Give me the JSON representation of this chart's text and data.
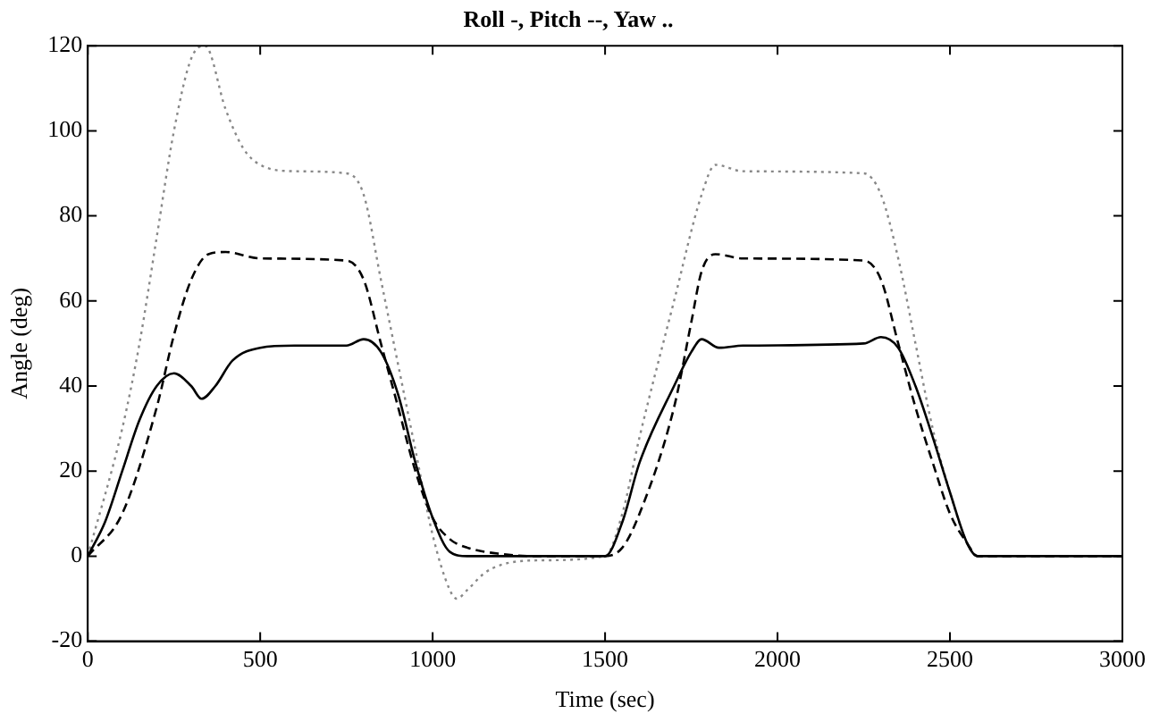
{
  "chart_data": {
    "type": "line",
    "title": "Roll -, Pitch --, Yaw ..",
    "xlabel": "Time (sec)",
    "ylabel": "Angle (deg)",
    "xlim": [
      0,
      3000
    ],
    "xticks": [
      0,
      500,
      1000,
      1500,
      2000,
      2500,
      3000
    ],
    "ylim": [
      -20,
      120
    ],
    "yticks": [
      -20,
      0,
      20,
      40,
      60,
      80,
      100,
      120
    ],
    "grid": false,
    "legend": false,
    "marker": "none",
    "series": [
      {
        "color": "#000000",
        "line_style": "solid",
        "x": [
          0,
          50,
          100,
          150,
          200,
          250,
          300,
          330,
          370,
          420,
          500,
          600,
          750,
          800,
          850,
          900,
          950,
          1000,
          1050,
          1100,
          1500,
          1550,
          1600,
          1700,
          1750,
          1780,
          1830,
          1900,
          2250,
          2300,
          2350,
          2400,
          2450,
          2500,
          2550,
          2580,
          3000
        ],
        "values": [
          0,
          8,
          20,
          32,
          40,
          43,
          40,
          37,
          40,
          46,
          49,
          49.5,
          49.5,
          51,
          48,
          38,
          22,
          9,
          1,
          0,
          0,
          8,
          22,
          40,
          48,
          51,
          49,
          49.5,
          50,
          51.5,
          49,
          40,
          28,
          15,
          3,
          0,
          0
        ]
      },
      {
        "color": "#000000",
        "line_style": "dashed",
        "x": [
          0,
          100,
          200,
          250,
          300,
          350,
          400,
          500,
          750,
          800,
          850,
          900,
          950,
          1000,
          1050,
          1100,
          1200,
          1300,
          1500,
          1550,
          1600,
          1700,
          1750,
          1780,
          1820,
          1900,
          2250,
          2300,
          2350,
          2400,
          2450,
          2500,
          2550,
          2580,
          3000
        ],
        "values": [
          0,
          10,
          35,
          52,
          65,
          71,
          71.5,
          70,
          69.5,
          65,
          50,
          35,
          20,
          9,
          4,
          2,
          0.5,
          0,
          0,
          2,
          10,
          35,
          55,
          67,
          71,
          70,
          69.5,
          65,
          50,
          35,
          22,
          10,
          3,
          0,
          0
        ]
      },
      {
        "color": "#888888",
        "line_style": "dotted",
        "x": [
          0,
          100,
          150,
          200,
          250,
          300,
          340,
          400,
          450,
          500,
          600,
          750,
          800,
          850,
          900,
          950,
          1000,
          1050,
          1070,
          1100,
          1150,
          1200,
          1300,
          1500,
          1550,
          1600,
          1700,
          1780,
          1820,
          1900,
          2250,
          2300,
          2350,
          2400,
          2450,
          2500,
          2550,
          2580,
          3000
        ],
        "values": [
          0,
          30,
          50,
          75,
          100,
          117,
          120,
          105,
          96,
          92,
          90.5,
          90,
          85,
          65,
          45,
          25,
          5,
          -8,
          -10,
          -8,
          -4,
          -2,
          -1,
          0,
          10,
          28,
          60,
          85,
          92,
          90.5,
          90,
          85,
          70,
          50,
          30,
          15,
          3,
          0,
          0
        ]
      }
    ]
  }
}
